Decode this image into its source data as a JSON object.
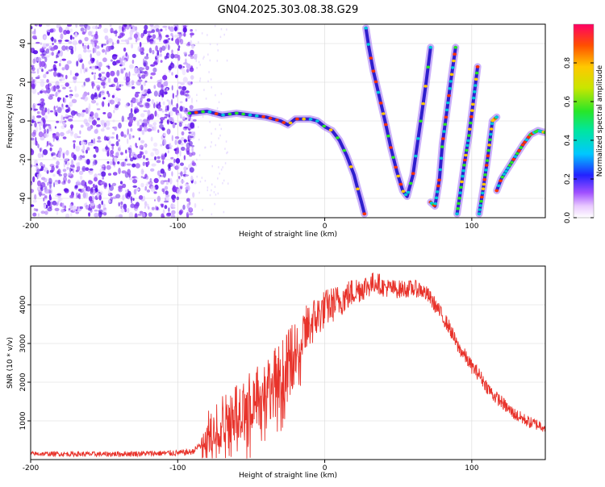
{
  "figure_title": "GN04.2025.303.08.38.G29",
  "colors": {
    "snr_line": "#e8322a",
    "axes": "#000000",
    "grid": "#d8d8d8",
    "spectro_scatter": "#7b2cf0"
  },
  "chart_data": [
    {
      "type": "heatmap",
      "title": "GN04.2025.303.08.38.G29",
      "xlabel": "Height of straight line (km)",
      "ylabel": "Frequency (Hz)",
      "xlim": [
        -200,
        150
      ],
      "ylim": [
        -50,
        50
      ],
      "x_ticks": [
        -200,
        -100,
        0,
        100
      ],
      "y_ticks": [
        -40,
        -20,
        0,
        20,
        40
      ],
      "x_tick_labels": [
        "-200",
        "-100",
        "0",
        "100"
      ],
      "y_tick_labels": [
        "-40",
        "-20",
        "0",
        "20",
        "40"
      ],
      "noise_region_km": [
        -200,
        -88
      ],
      "colorbar": {
        "label": "Normalized spectral amplitude",
        "range": [
          0,
          1
        ],
        "ticks": [
          0.0,
          0.2,
          0.4,
          0.6,
          0.8
        ],
        "tick_labels": [
          "0.0",
          "0.2",
          "0.4",
          "0.6",
          "0.8"
        ]
      },
      "ridges": [
        {
          "name": "main-trace",
          "x": [
            -92,
            -80,
            -70,
            -60,
            -50,
            -40,
            -30,
            -25,
            -20,
            -10,
            -5,
            0,
            5,
            10,
            15,
            20,
            22,
            25,
            27
          ],
          "y": [
            4,
            5,
            3,
            4,
            3,
            2,
            0,
            -2,
            1,
            1,
            0,
            -3,
            -5,
            -10,
            -18,
            -28,
            -34,
            -42,
            -48
          ]
        },
        {
          "name": "alias-1",
          "x": [
            28,
            30,
            33,
            37,
            41,
            45,
            49,
            53,
            56,
            60,
            63,
            66,
            69,
            72
          ],
          "y": [
            48,
            38,
            26,
            13,
            0,
            -14,
            -26,
            -36,
            -39,
            -28,
            -12,
            4,
            20,
            38
          ]
        },
        {
          "name": "alias-2",
          "x": [
            72,
            75,
            78,
            80,
            83,
            86,
            89
          ],
          "y": [
            -42,
            -44,
            -30,
            -12,
            5,
            22,
            38
          ]
        },
        {
          "name": "alias-3",
          "x": [
            90,
            92,
            95,
            98,
            101,
            104
          ],
          "y": [
            -48,
            -38,
            -22,
            -8,
            10,
            28
          ]
        },
        {
          "name": "alias-4",
          "x": [
            105,
            108,
            111,
            114,
            117
          ],
          "y": [
            -48,
            -34,
            -18,
            0,
            2
          ]
        },
        {
          "name": "alias-5",
          "x": [
            117,
            120,
            125,
            130,
            135,
            140,
            145,
            150
          ],
          "y": [
            -36,
            -30,
            -24,
            -18,
            -12,
            -7,
            -5,
            -6
          ]
        }
      ]
    },
    {
      "type": "line",
      "xlabel": "Height of straight line (km)",
      "ylabel": "SNR (10 * v/v)",
      "xlim": [
        -200,
        150
      ],
      "ylim": [
        0,
        5000
      ],
      "x_ticks": [
        -200,
        -100,
        0,
        100
      ],
      "y_ticks": [
        1000,
        2000,
        3000,
        4000
      ],
      "x_tick_labels": [
        "-200",
        "-100",
        "0",
        "100"
      ],
      "y_tick_labels": [
        "1000",
        "2000",
        "3000",
        "4000"
      ],
      "series": [
        {
          "name": "SNR",
          "envelope_x": [
            -200,
            -150,
            -100,
            -90,
            -80,
            -75,
            -70,
            -60,
            -50,
            -40,
            -30,
            -20,
            -10,
            0,
            10,
            20,
            30,
            35,
            40,
            50,
            60,
            65,
            70,
            75,
            80,
            85,
            90,
            95,
            100,
            105,
            110,
            115,
            120,
            125,
            130,
            135,
            140,
            145,
            150
          ],
          "envelope_y": [
            150,
            140,
            170,
            200,
            550,
            900,
            1000,
            1300,
            1500,
            1800,
            2200,
            2800,
            3500,
            3900,
            4100,
            4350,
            4500,
            4600,
            4450,
            4400,
            4420,
            4400,
            4250,
            4000,
            3700,
            3400,
            2950,
            2700,
            2400,
            2200,
            1900,
            1650,
            1500,
            1300,
            1150,
            1050,
            950,
            900,
            850
          ],
          "noise_amp_x": [
            -200,
            -85,
            -80,
            -30,
            -20,
            0,
            40,
            80,
            150
          ],
          "noise_amp_y": [
            60,
            80,
            700,
            900,
            800,
            500,
            250,
            200,
            150
          ]
        }
      ]
    }
  ]
}
